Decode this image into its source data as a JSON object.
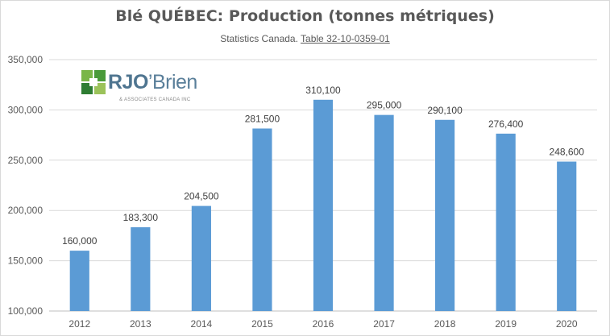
{
  "chart_data": {
    "type": "bar",
    "title": "Blé QUÉBEC: Production (tonnes métriques)",
    "subtitle_prefix": "Statistics Canada.",
    "subtitle_link": "Table 32-10-0359-01",
    "categories": [
      "2012",
      "2013",
      "2014",
      "2015",
      "2016",
      "2017",
      "2018",
      "2019",
      "2020"
    ],
    "values": [
      160000,
      183300,
      204500,
      281500,
      310100,
      295000,
      290100,
      276400,
      248600
    ],
    "data_labels": [
      "160,000",
      "183,300",
      "204,500",
      "281,500",
      "310,100",
      "295,000",
      "290,100",
      "276,400",
      "248,600"
    ],
    "ylim": [
      100000,
      350000
    ],
    "yticks": [
      100000,
      150000,
      200000,
      250000,
      300000,
      350000
    ],
    "ytick_labels": [
      "100,000",
      "150,000",
      "200,000",
      "250,000",
      "300,000",
      "350,000"
    ],
    "grid": true,
    "bar_color": "#5b9bd5"
  },
  "logo": {
    "wordmark_bold": "RJO",
    "wordmark_rest": "’Brien",
    "tagline": "& ASSOCIATES CANADA INC"
  }
}
